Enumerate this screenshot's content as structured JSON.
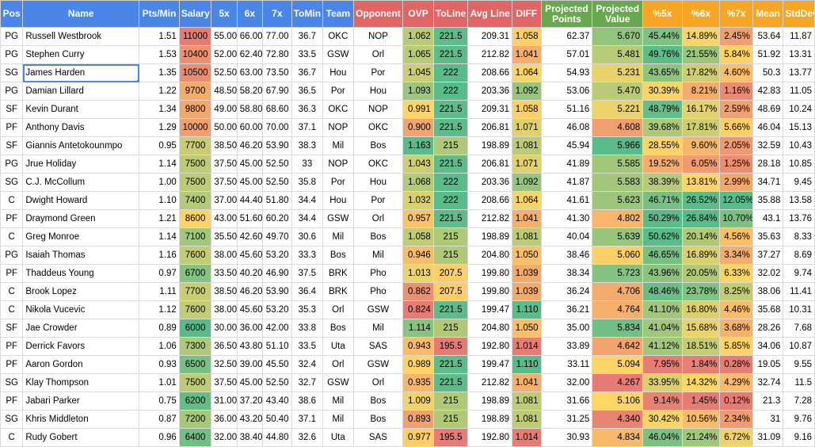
{
  "colors": {
    "header_blue": "#4a86e8",
    "header_red": "#e06666",
    "header_green": "#6aa84f",
    "header_orange": "#f6a623"
  },
  "columns": [
    {
      "key": "pos",
      "label": "Pos",
      "color": "#4a86e8"
    },
    {
      "key": "name",
      "label": "Name",
      "color": "#4a86e8"
    },
    {
      "key": "ptsmin",
      "label": "Pts/Min",
      "color": "#4a86e8"
    },
    {
      "key": "salary",
      "label": "Salary",
      "color": "#4a86e8"
    },
    {
      "key": "x5",
      "label": "5x",
      "color": "#4a86e8"
    },
    {
      "key": "x6",
      "label": "6x",
      "color": "#4a86e8"
    },
    {
      "key": "x7",
      "label": "7x",
      "color": "#4a86e8"
    },
    {
      "key": "tomin",
      "label": "ToMin",
      "color": "#4a86e8"
    },
    {
      "key": "team",
      "label": "Team",
      "color": "#4a86e8"
    },
    {
      "key": "opp",
      "label": "Opponent",
      "color": "#e06666"
    },
    {
      "key": "ovp",
      "label": "OVP",
      "color": "#e06666"
    },
    {
      "key": "toline",
      "label": "ToLine",
      "color": "#e06666"
    },
    {
      "key": "avgline",
      "label": "Avg Line",
      "color": "#e06666"
    },
    {
      "key": "diff",
      "label": "DIFF",
      "color": "#e06666"
    },
    {
      "key": "projpts",
      "label": "Projected Points",
      "color": "#6aa84f"
    },
    {
      "key": "projval",
      "label": "Projected Value",
      "color": "#6aa84f"
    },
    {
      "key": "p5",
      "label": "%5x",
      "color": "#f6a623"
    },
    {
      "key": "p6",
      "label": "%6x",
      "color": "#f6a623"
    },
    {
      "key": "p7",
      "label": "%7x",
      "color": "#f6a623"
    },
    {
      "key": "mean",
      "label": "Mean",
      "color": "#f6a623"
    },
    {
      "key": "sd",
      "label": "StdDev",
      "color": "#f6a623"
    }
  ],
  "rows": [
    [
      "PG",
      "Russell Westbrook",
      "1.51",
      "11000",
      "55.00",
      "66.00",
      "77.00",
      "36.7",
      "OKC",
      "NOP",
      "1.062",
      "221.5",
      "209.31",
      "1.058",
      "62.37",
      "5.670",
      "45.44%",
      "14.89%",
      "2.45%",
      "53.64",
      "11.87"
    ],
    [
      "PG",
      "Stephen Curry",
      "1.53",
      "10400",
      "52.00",
      "62.40",
      "72.80",
      "33.5",
      "GSW",
      "Orl",
      "1.065",
      "221.5",
      "212.82",
      "1.041",
      "57.01",
      "5.481",
      "49.76%",
      "21.55%",
      "5.84%",
      "51.92",
      "13.31"
    ],
    [
      "SG",
      "James Harden",
      "1.35",
      "10500",
      "52.50",
      "63.00",
      "73.50",
      "36.7",
      "Hou",
      "Por",
      "1.045",
      "222",
      "208.66",
      "1.064",
      "54.93",
      "5.231",
      "43.65%",
      "17.82%",
      "4.60%",
      "50.3",
      "13.77"
    ],
    [
      "PG",
      "Damian Lillard",
      "1.22",
      "9700",
      "48.50",
      "58.20",
      "67.90",
      "36.5",
      "Por",
      "Hou",
      "1.093",
      "222",
      "203.36",
      "1.092",
      "53.06",
      "5.470",
      "30.39%",
      "8.21%",
      "1.16%",
      "42.83",
      "11.05"
    ],
    [
      "SF",
      "Kevin Durant",
      "1.34",
      "9800",
      "49.00",
      "58.80",
      "68.60",
      "36.3",
      "OKC",
      "NOP",
      "0.991",
      "221.5",
      "209.31",
      "1.058",
      "51.16",
      "5.221",
      "48.79%",
      "16.17%",
      "2.59%",
      "48.69",
      "10.24"
    ],
    [
      "PF",
      "Anthony Davis",
      "1.29",
      "10000",
      "50.00",
      "60.00",
      "70.00",
      "37.1",
      "NOP",
      "OKC",
      "0.900",
      "221.5",
      "206.81",
      "1.071",
      "46.08",
      "4.608",
      "39.68%",
      "17.81%",
      "5.66%",
      "46.04",
      "15.13"
    ],
    [
      "SF",
      "Giannis Antetokounmpo",
      "0.95",
      "7700",
      "38.50",
      "46.20",
      "53.90",
      "38.3",
      "Mil",
      "Bos",
      "1.163",
      "215",
      "198.89",
      "1.081",
      "45.94",
      "5.966",
      "28.55%",
      "9.60%",
      "2.05%",
      "32.59",
      "10.43"
    ],
    [
      "PG",
      "Jrue Holiday",
      "1.14",
      "7500",
      "37.50",
      "45.00",
      "52.50",
      "33",
      "NOP",
      "OKC",
      "1.043",
      "221.5",
      "206.81",
      "1.071",
      "41.89",
      "5.585",
      "19.52%",
      "6.05%",
      "1.25%",
      "28.18",
      "10.85"
    ],
    [
      "SG",
      "C.J. McCollum",
      "1.00",
      "7500",
      "37.50",
      "45.00",
      "52.50",
      "35.8",
      "Por",
      "Hou",
      "1.068",
      "222",
      "203.36",
      "1.092",
      "41.87",
      "5.583",
      "38.39%",
      "13.81%",
      "2.99%",
      "34.71",
      "9.45"
    ],
    [
      "C",
      "Dwight Howard",
      "1.10",
      "7400",
      "37.00",
      "44.40",
      "51.80",
      "34.4",
      "Hou",
      "Por",
      "1.032",
      "222",
      "208.66",
      "1.064",
      "41.61",
      "5.623",
      "46.71%",
      "26.52%",
      "12.05%",
      "35.88",
      "13.58"
    ],
    [
      "PF",
      "Draymond Green",
      "1.21",
      "8600",
      "43.00",
      "51.60",
      "60.20",
      "34.4",
      "GSW",
      "Orl",
      "0.957",
      "221.5",
      "212.82",
      "1.041",
      "41.30",
      "4.802",
      "50.29%",
      "26.84%",
      "10.70%",
      "43.1",
      "13.76"
    ],
    [
      "C",
      "Greg Monroe",
      "1.14",
      "7100",
      "35.50",
      "42.60",
      "49.70",
      "30.6",
      "Mil",
      "Bos",
      "1.058",
      "215",
      "198.89",
      "1.081",
      "40.04",
      "5.639",
      "50.62%",
      "20.14%",
      "4.56%",
      "35.63",
      "8.33"
    ],
    [
      "PG",
      "Isaiah Thomas",
      "1.16",
      "7600",
      "38.00",
      "45.60",
      "53.20",
      "33.3",
      "Bos",
      "Mil",
      "0.946",
      "215",
      "204.80",
      "1.050",
      "38.46",
      "5.060",
      "46.65%",
      "16.89%",
      "3.34%",
      "37.27",
      "8.69"
    ],
    [
      "PF",
      "Thaddeus Young",
      "0.97",
      "6700",
      "33.50",
      "40.20",
      "46.90",
      "37.5",
      "BRK",
      "Pho",
      "1.013",
      "207.5",
      "199.80",
      "1.039",
      "38.34",
      "5.723",
      "43.96%",
      "20.05%",
      "6.33%",
      "32.02",
      "9.74"
    ],
    [
      "C",
      "Brook Lopez",
      "1.11",
      "7700",
      "38.50",
      "46.20",
      "53.90",
      "36.4",
      "BRK",
      "Pho",
      "0.862",
      "207.5",
      "199.80",
      "1.039",
      "36.24",
      "4.706",
      "48.46%",
      "23.78%",
      "8.25%",
      "38.06",
      "11.41"
    ],
    [
      "C",
      "Nikola Vucevic",
      "1.12",
      "7600",
      "38.00",
      "45.60",
      "53.20",
      "35.3",
      "Orl",
      "GSW",
      "0.824",
      "221.5",
      "199.47",
      "1.110",
      "36.21",
      "4.764",
      "41.10%",
      "16.80%",
      "4.46%",
      "35.68",
      "10.31"
    ],
    [
      "SF",
      "Jae Crowder",
      "0.89",
      "6000",
      "30.00",
      "36.00",
      "42.00",
      "33.8",
      "Bos",
      "Mil",
      "1.114",
      "215",
      "204.80",
      "1.050",
      "35.00",
      "5.834",
      "41.04%",
      "15.68%",
      "3.68%",
      "28.26",
      "7.68"
    ],
    [
      "PF",
      "Derrick Favors",
      "1.06",
      "7300",
      "36.50",
      "43.80",
      "51.10",
      "33.5",
      "Uta",
      "SAS",
      "0.943",
      "195.5",
      "192.80",
      "1.014",
      "33.89",
      "4.642",
      "41.12%",
      "18.51%",
      "5.85%",
      "34.06",
      "10.87"
    ],
    [
      "PF",
      "Aaron Gordon",
      "0.93",
      "6500",
      "32.50",
      "39.00",
      "45.50",
      "32.4",
      "Orl",
      "GSW",
      "0.989",
      "221.5",
      "199.47",
      "1.110",
      "33.11",
      "5.094",
      "7.95%",
      "1.84%",
      "0.28%",
      "19.05",
      "9.55"
    ],
    [
      "SG",
      "Klay Thompson",
      "1.01",
      "7500",
      "37.50",
      "45.00",
      "52.50",
      "32.7",
      "GSW",
      "Orl",
      "0.935",
      "221.5",
      "212.82",
      "1.041",
      "32.00",
      "4.267",
      "33.95%",
      "14.32%",
      "4.29%",
      "32.74",
      "11.5"
    ],
    [
      "PF",
      "Jabari Parker",
      "0.75",
      "6200",
      "31.00",
      "37.20",
      "43.40",
      "38.6",
      "Mil",
      "Bos",
      "1.009",
      "215",
      "198.89",
      "1.081",
      "31.66",
      "5.106",
      "9.14%",
      "1.45%",
      "0.12%",
      "21.3",
      "7.28"
    ],
    [
      "SG",
      "Khris Middleton",
      "0.87",
      "7200",
      "36.00",
      "43.20",
      "50.40",
      "37.1",
      "Mil",
      "Bos",
      "0.893",
      "215",
      "198.89",
      "1.081",
      "31.25",
      "4.340",
      "30.42%",
      "10.56%",
      "2.34%",
      "31",
      "9.76"
    ],
    [
      "C",
      "Rudy Gobert",
      "0.96",
      "6400",
      "32.00",
      "38.40",
      "44.80",
      "32.6",
      "Uta",
      "SAS",
      "0.977",
      "195.5",
      "192.80",
      "1.014",
      "30.93",
      "4.834",
      "46.04%",
      "21.24%",
      "6.72%",
      "31.09",
      "9.16"
    ]
  ],
  "selected_cell": {
    "row": 2,
    "col": 1
  }
}
